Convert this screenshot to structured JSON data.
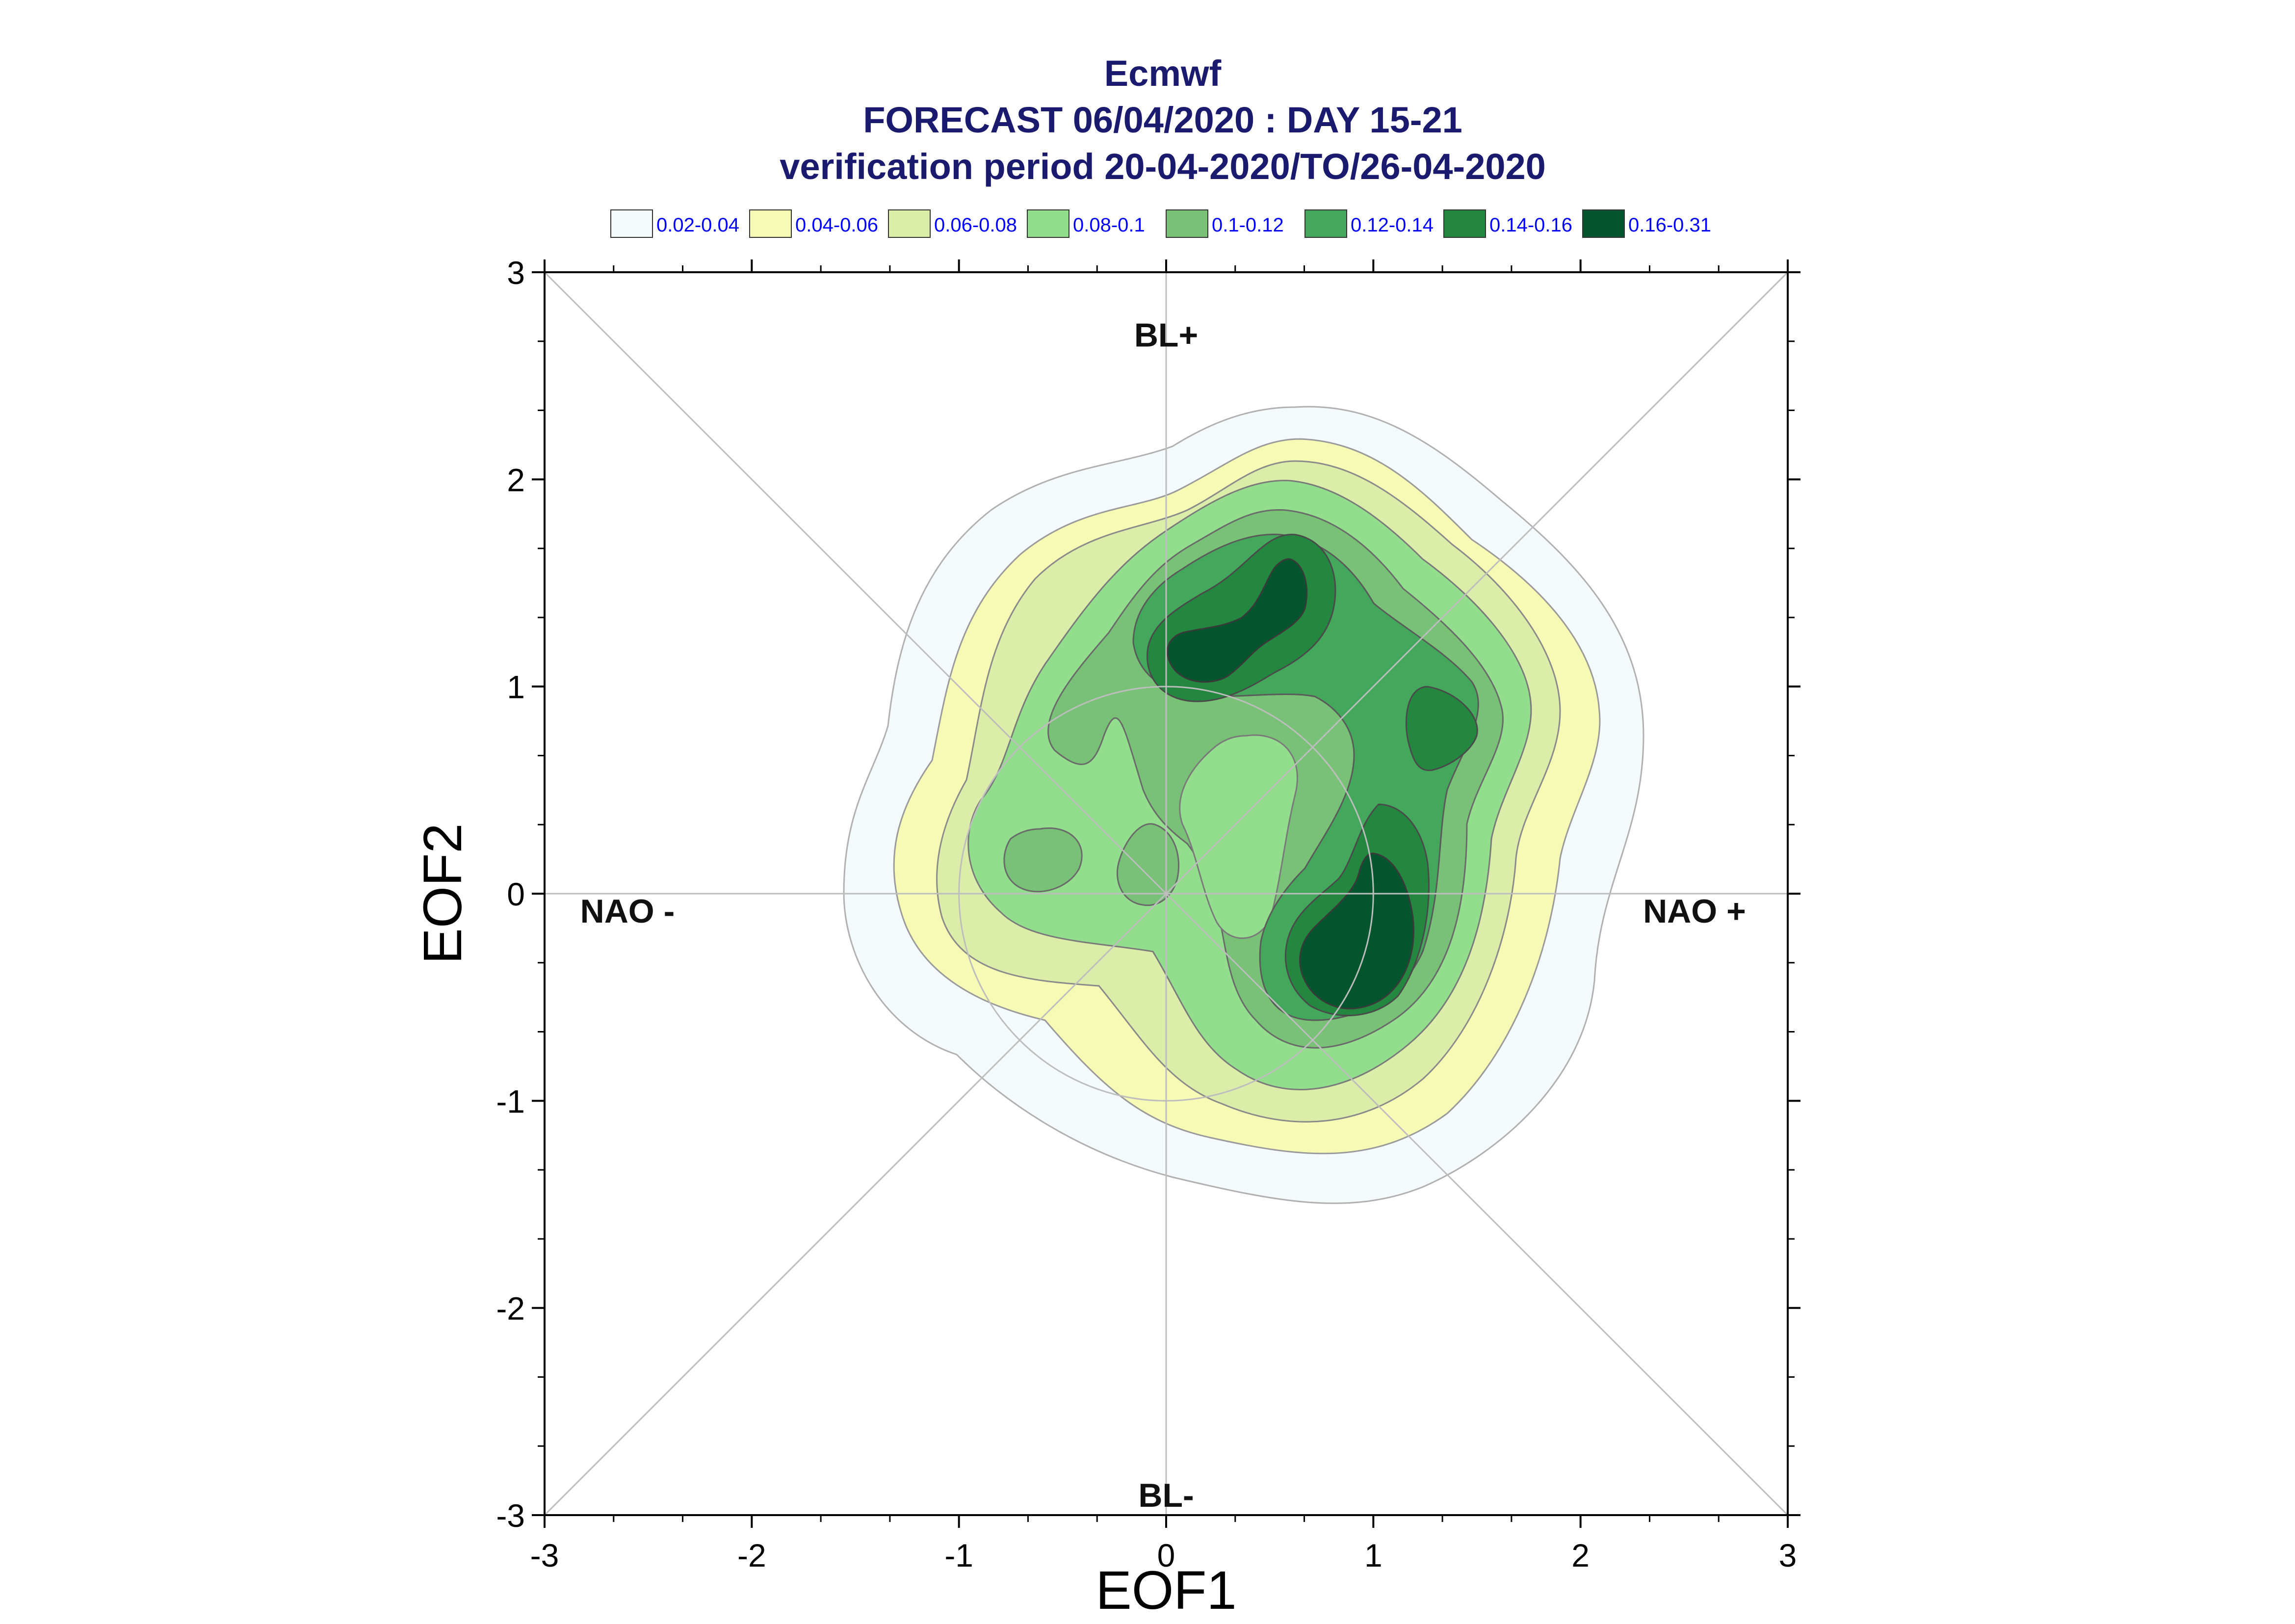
{
  "header": {
    "line1": "Ecmwf",
    "line2": "FORECAST 06/04/2020 : DAY 15-21",
    "line3": "verification period 20-04-2020/TO/26-04-2020"
  },
  "chart_data": {
    "type": "contour",
    "title": "Ecmwf",
    "subtitle": "FORECAST 06/04/2020 : DAY 15-21 / verification period 20-04-2020/TO/26-04-2020",
    "xlabel": "EOF1",
    "ylabel": "EOF2",
    "xlim": [
      -3,
      3
    ],
    "ylim": [
      -3,
      3
    ],
    "xticks": [
      "-3",
      "-2",
      "-1",
      "0",
      "1",
      "2",
      "3"
    ],
    "yticks": [
      "-3",
      "-2",
      "-1",
      "0",
      "1",
      "2",
      "3"
    ],
    "grid": false,
    "legend_position": "top",
    "legend": [
      {
        "label": "0.02-0.04",
        "color": "#f4f9fb"
      },
      {
        "label": "0.04-0.06",
        "color": "#f7fab5"
      },
      {
        "label": "0.06-0.08",
        "color": "#dcedaa"
      },
      {
        "label": "0.08-0.1",
        "color": "#92de8d"
      },
      {
        "label": "0.1-0.12",
        "color": "#78c177"
      },
      {
        "label": "0.12-0.14",
        "color": "#43a85b"
      },
      {
        "label": "0.14-0.16",
        "color": "#24873f"
      },
      {
        "label": "0.16-0.31",
        "color": "#03552e"
      }
    ],
    "regime_labels": [
      {
        "text": "BL+",
        "x": 0.0,
        "y": 2.7
      },
      {
        "text": "BL-",
        "x": 0.0,
        "y": -2.9
      },
      {
        "text": "NAO -",
        "x": -2.6,
        "y": -0.08
      },
      {
        "text": "NAO +",
        "x": 2.55,
        "y": -0.08
      }
    ],
    "reference_circle_radius": 1.0,
    "density_maxima": [
      {
        "x": 0.6,
        "y": 1.45,
        "level": "0.16-0.31"
      },
      {
        "x": 0.2,
        "y": 1.15,
        "level": "0.16-0.31"
      },
      {
        "x": 1.0,
        "y": -0.3,
        "level": "0.16-0.31"
      },
      {
        "x": 1.3,
        "y": 0.75,
        "level": "0.14-0.16"
      },
      {
        "x": -0.65,
        "y": 0.15,
        "level": "0.1-0.12"
      },
      {
        "x": -0.1,
        "y": 0.05,
        "level": "0.1-0.12"
      }
    ]
  }
}
